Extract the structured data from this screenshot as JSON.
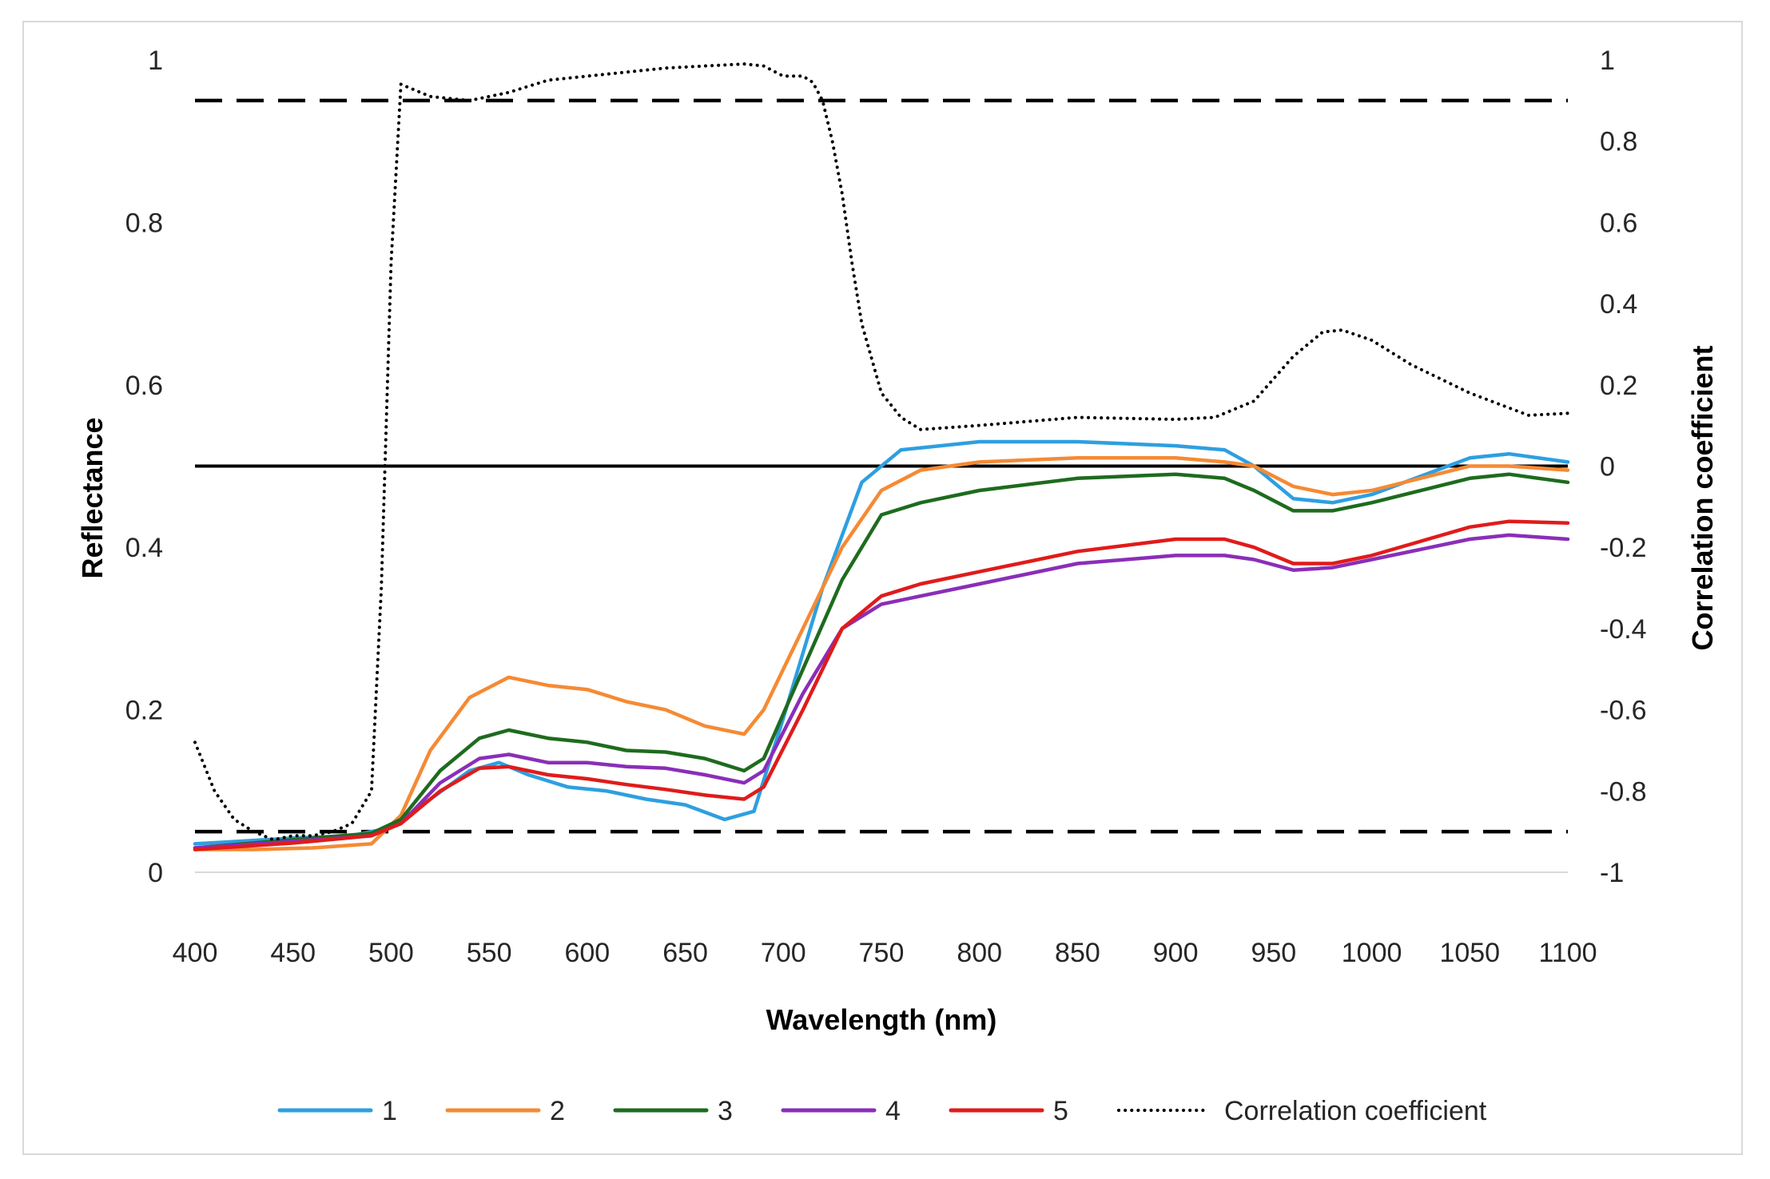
{
  "chart_data": {
    "type": "line",
    "title": "",
    "xlabel": "Wavelength (nm)",
    "ylabel": "Reflectance",
    "y2label": "Correlation coefficient",
    "xlim": [
      400,
      1100
    ],
    "ylim": [
      0,
      1
    ],
    "y2lim": [
      -1,
      1
    ],
    "grid": false,
    "legend_position": "bottom",
    "x_ticks": [
      "400",
      "450",
      "500",
      "550",
      "600",
      "650",
      "700",
      "750",
      "800",
      "850",
      "900",
      "950",
      "1000",
      "1050",
      "1100"
    ],
    "y_ticks": [
      "0",
      "0.2",
      "0.4",
      "0.6",
      "0.8",
      "1"
    ],
    "y2_ticks": [
      "-1",
      "-0.8",
      "-0.6",
      "-0.4",
      "-0.2",
      "0",
      "0.2",
      "0.4",
      "0.6",
      "0.8",
      "1"
    ],
    "reference_lines": [
      {
        "name": "upper-threshold",
        "axis": "y2",
        "value": 0.9,
        "style": "dashed"
      },
      {
        "name": "lower-threshold",
        "axis": "y2",
        "value": -0.9,
        "style": "dashed"
      },
      {
        "name": "zero-line",
        "axis": "y2",
        "value": 0,
        "style": "solid"
      }
    ],
    "series": [
      {
        "name": "1",
        "color": "#2e9fe0",
        "axis": "y",
        "style": "solid",
        "x": [
          400,
          450,
          480,
          500,
          520,
          540,
          555,
          570,
          590,
          610,
          630,
          650,
          670,
          685,
          700,
          720,
          740,
          755,
          760,
          800,
          850,
          900,
          925,
          940,
          960,
          980,
          1000,
          1050,
          1070,
          1100
        ],
        "y": [
          0.035,
          0.042,
          0.045,
          0.055,
          0.09,
          0.125,
          0.135,
          0.12,
          0.105,
          0.1,
          0.09,
          0.083,
          0.065,
          0.075,
          0.19,
          0.35,
          0.48,
          0.51,
          0.52,
          0.53,
          0.53,
          0.525,
          0.52,
          0.5,
          0.46,
          0.455,
          0.465,
          0.51,
          0.515,
          0.505
        ]
      },
      {
        "name": "2",
        "color": "#f58a34",
        "axis": "y",
        "style": "solid",
        "x": [
          400,
          430,
          460,
          490,
          505,
          520,
          540,
          560,
          580,
          600,
          620,
          640,
          660,
          680,
          690,
          710,
          730,
          750,
          770,
          800,
          850,
          900,
          925,
          940,
          960,
          980,
          1000,
          1050,
          1070,
          1100
        ],
        "y": [
          0.028,
          0.028,
          0.03,
          0.035,
          0.07,
          0.15,
          0.215,
          0.24,
          0.23,
          0.225,
          0.21,
          0.2,
          0.18,
          0.17,
          0.2,
          0.3,
          0.4,
          0.47,
          0.495,
          0.505,
          0.51,
          0.51,
          0.505,
          0.5,
          0.475,
          0.465,
          0.47,
          0.5,
          0.5,
          0.495
        ]
      },
      {
        "name": "3",
        "color": "#1e6b1e",
        "axis": "y",
        "style": "solid",
        "x": [
          400,
          450,
          490,
          505,
          525,
          545,
          560,
          580,
          600,
          620,
          640,
          660,
          680,
          690,
          710,
          730,
          750,
          770,
          800,
          850,
          900,
          925,
          940,
          960,
          980,
          1000,
          1050,
          1070,
          1100
        ],
        "y": [
          0.03,
          0.04,
          0.048,
          0.065,
          0.125,
          0.165,
          0.175,
          0.165,
          0.16,
          0.15,
          0.148,
          0.14,
          0.125,
          0.14,
          0.25,
          0.36,
          0.44,
          0.455,
          0.47,
          0.485,
          0.49,
          0.485,
          0.47,
          0.445,
          0.445,
          0.455,
          0.485,
          0.49,
          0.48
        ]
      },
      {
        "name": "4",
        "color": "#8a2eb8",
        "axis": "y",
        "style": "solid",
        "x": [
          400,
          450,
          490,
          505,
          525,
          545,
          560,
          580,
          600,
          620,
          640,
          660,
          680,
          690,
          710,
          730,
          750,
          770,
          800,
          850,
          900,
          925,
          940,
          960,
          980,
          1000,
          1050,
          1070,
          1100
        ],
        "y": [
          0.03,
          0.038,
          0.045,
          0.06,
          0.11,
          0.14,
          0.145,
          0.135,
          0.135,
          0.13,
          0.128,
          0.12,
          0.11,
          0.125,
          0.22,
          0.3,
          0.33,
          0.34,
          0.355,
          0.38,
          0.39,
          0.39,
          0.385,
          0.372,
          0.375,
          0.385,
          0.41,
          0.415,
          0.41
        ]
      },
      {
        "name": "5",
        "color": "#e01b1b",
        "axis": "y",
        "style": "solid",
        "x": [
          400,
          450,
          490,
          505,
          525,
          545,
          560,
          580,
          600,
          620,
          640,
          660,
          680,
          690,
          710,
          730,
          750,
          770,
          800,
          850,
          900,
          925,
          940,
          960,
          980,
          1000,
          1050,
          1070,
          1100
        ],
        "y": [
          0.028,
          0.036,
          0.045,
          0.06,
          0.1,
          0.128,
          0.13,
          0.12,
          0.115,
          0.108,
          0.102,
          0.095,
          0.09,
          0.105,
          0.2,
          0.3,
          0.34,
          0.355,
          0.37,
          0.395,
          0.41,
          0.41,
          0.4,
          0.38,
          0.38,
          0.39,
          0.425,
          0.432,
          0.43
        ]
      },
      {
        "name": "Correlation coefficient",
        "color": "#000000",
        "axis": "y2",
        "style": "dotted",
        "x": [
          400,
          410,
          420,
          430,
          440,
          450,
          460,
          470,
          480,
          490,
          495,
          500,
          505,
          520,
          540,
          560,
          580,
          600,
          620,
          640,
          660,
          680,
          690,
          700,
          710,
          715,
          720,
          725,
          730,
          735,
          740,
          750,
          760,
          770,
          800,
          850,
          900,
          920,
          940,
          960,
          975,
          985,
          1000,
          1020,
          1050,
          1080,
          1100
        ],
        "y": [
          -0.68,
          -0.8,
          -0.87,
          -0.9,
          -0.92,
          -0.91,
          -0.91,
          -0.9,
          -0.88,
          -0.8,
          -0.3,
          0.5,
          0.94,
          0.91,
          0.9,
          0.92,
          0.95,
          0.96,
          0.97,
          0.98,
          0.985,
          0.99,
          0.985,
          0.96,
          0.96,
          0.945,
          0.9,
          0.8,
          0.67,
          0.5,
          0.35,
          0.18,
          0.12,
          0.09,
          0.1,
          0.12,
          0.115,
          0.12,
          0.16,
          0.27,
          0.33,
          0.335,
          0.31,
          0.25,
          0.18,
          0.125,
          0.13
        ]
      }
    ]
  }
}
